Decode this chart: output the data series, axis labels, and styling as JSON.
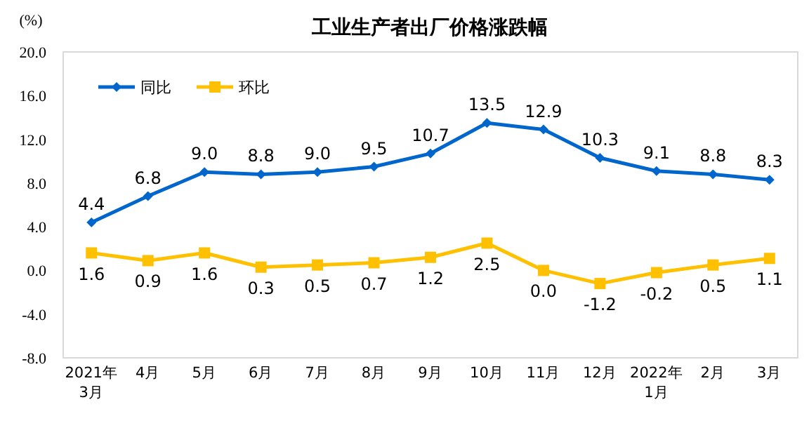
{
  "chart_data": {
    "type": "line",
    "title": "工业生产者出厂价格涨跌幅",
    "ylabel": "(%)",
    "categories": [
      "2021年\n3月",
      "4月",
      "5月",
      "6月",
      "7月",
      "8月",
      "9月",
      "10月",
      "11月",
      "12月",
      "2022年\n1月",
      "2月",
      "3月"
    ],
    "series": [
      {
        "name": "同比",
        "color": "#0066cc",
        "marker": "diamond",
        "values": [
          4.4,
          6.8,
          9.0,
          8.8,
          9.0,
          9.5,
          10.7,
          13.5,
          12.9,
          10.3,
          9.1,
          8.8,
          8.3
        ],
        "value_labels": [
          "4.4",
          "6.8",
          "9.0",
          "8.8",
          "9.0",
          "9.5",
          "10.7",
          "13.5",
          "12.9",
          "10.3",
          "9.1",
          "8.8",
          "8.3"
        ]
      },
      {
        "name": "环比",
        "color": "#ffc000",
        "marker": "square",
        "values": [
          1.6,
          0.9,
          1.6,
          0.3,
          0.5,
          0.7,
          1.2,
          2.5,
          0.0,
          -1.2,
          -0.2,
          0.5,
          1.1
        ],
        "value_labels": [
          "1.6",
          "0.9",
          "1.6",
          "0.3",
          "0.5",
          "0.7",
          "1.2",
          "2.5",
          "0.0",
          "-1.2",
          "-0.2",
          "0.5",
          "1.1"
        ]
      }
    ],
    "ylim": [
      -8,
      20
    ],
    "yticks": [
      {
        "value": -8,
        "label": "-8.0"
      },
      {
        "value": -4,
        "label": "-4.0"
      },
      {
        "value": 0,
        "label": "0.0"
      },
      {
        "value": 4,
        "label": "4.0"
      },
      {
        "value": 8,
        "label": "8.0"
      },
      {
        "value": 12,
        "label": "12.0"
      },
      {
        "value": 16,
        "label": "16.0"
      },
      {
        "value": 20,
        "label": "20.0"
      }
    ],
    "legend": "top left",
    "grid": false,
    "line_style": "solid"
  }
}
